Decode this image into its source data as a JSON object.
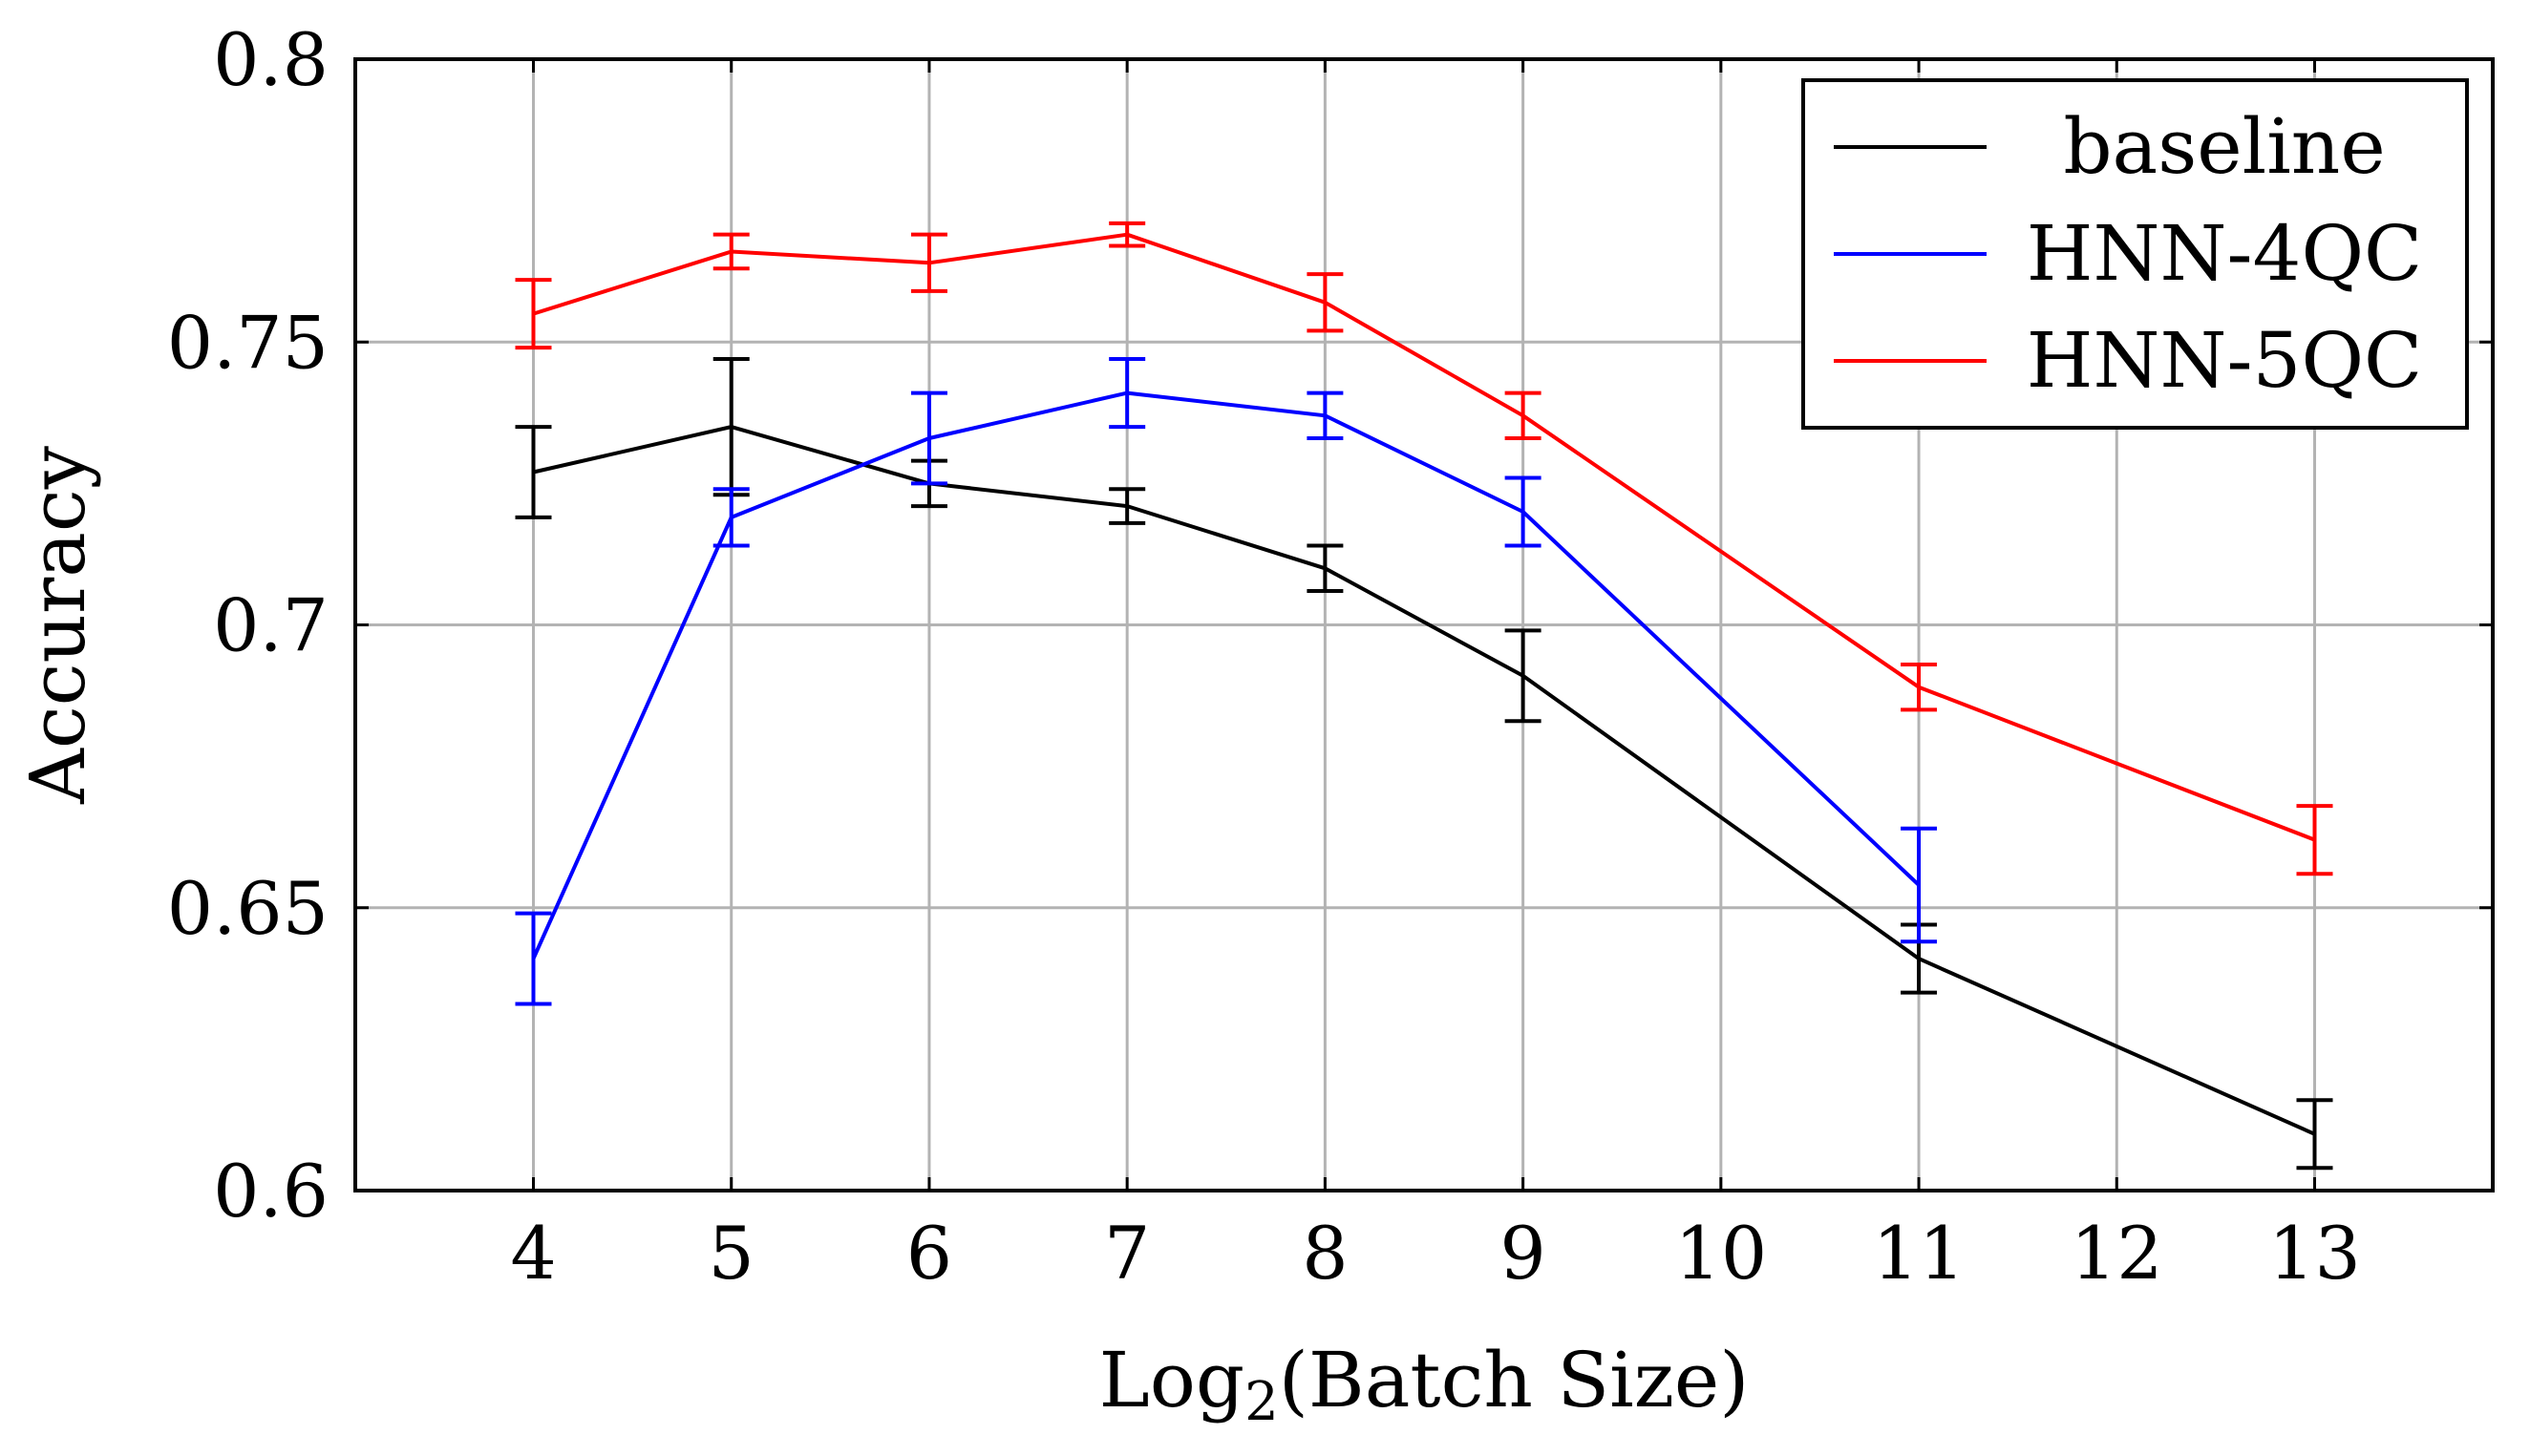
{
  "chart_data": {
    "type": "line",
    "title": "",
    "xlabel": "Log",
    "xlabel_subscript": "2",
    "xlabel_rest": "(Batch Size)",
    "ylabel": "Accuracy",
    "xlim": [
      3.1,
      13.9
    ],
    "ylim": [
      0.6,
      0.8
    ],
    "xticks": [
      4,
      5,
      6,
      7,
      8,
      9,
      10,
      11,
      12,
      13
    ],
    "yticks": [
      0.6,
      0.65,
      0.7,
      0.75,
      0.8
    ],
    "xtick_labels": [
      "4",
      "5",
      "6",
      "7",
      "8",
      "9",
      "10",
      "11",
      "12",
      "13"
    ],
    "ytick_labels": [
      "0.6",
      "0.65",
      "0.7",
      "0.75",
      "0.8"
    ],
    "grid": true,
    "legend_position": "top-right",
    "series": [
      {
        "name": "baseline",
        "color": "#000000",
        "x": [
          4,
          5,
          6,
          7,
          8,
          9,
          11,
          13
        ],
        "values": [
          0.727,
          0.735,
          0.725,
          0.721,
          0.71,
          0.691,
          0.641,
          0.61
        ],
        "errors": [
          0.008,
          0.012,
          0.004,
          0.003,
          0.004,
          0.008,
          0.006,
          0.006
        ]
      },
      {
        "name": "HNN-4QC",
        "color": "#0000ff",
        "x": [
          4,
          5,
          6,
          7,
          8,
          9,
          11
        ],
        "values": [
          0.641,
          0.719,
          0.733,
          0.741,
          0.737,
          0.72,
          0.654
        ],
        "errors": [
          0.008,
          0.005,
          0.008,
          0.006,
          0.004,
          0.006,
          0.01
        ]
      },
      {
        "name": "HNN-5QC",
        "color": "#ff0000",
        "x": [
          4,
          5,
          6,
          7,
          8,
          9,
          11,
          13
        ],
        "values": [
          0.755,
          0.766,
          0.764,
          0.769,
          0.757,
          0.737,
          0.689,
          0.662
        ],
        "errors": [
          0.006,
          0.003,
          0.005,
          0.002,
          0.005,
          0.004,
          0.004,
          0.006
        ]
      }
    ]
  }
}
